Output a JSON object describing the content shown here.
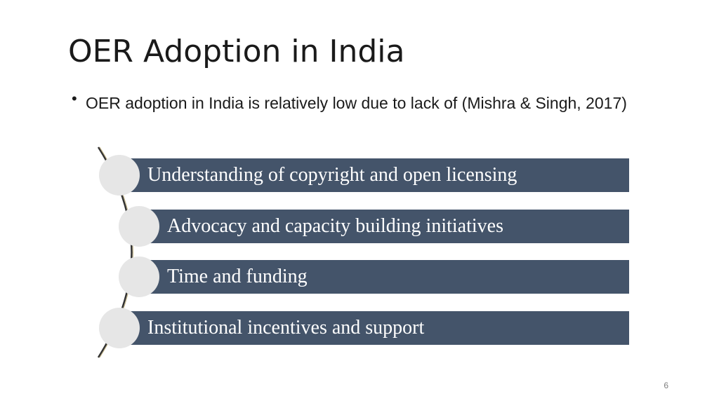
{
  "slide": {
    "title": "OER Adoption in India",
    "bullet": "OER adoption in India is relatively low due to lack of (Mishra & Singh, 2017)",
    "bullet_marker": "•",
    "items": [
      {
        "label": "Understanding of copyright and open licensing"
      },
      {
        "label": "Advocacy and capacity building initiatives"
      },
      {
        "label": "Time and funding"
      },
      {
        "label": "Institutional incentives and support"
      }
    ],
    "page_number": "6",
    "colors": {
      "bar": "#44546a",
      "circle": "#e6e6e6",
      "arc": "#333333"
    }
  }
}
